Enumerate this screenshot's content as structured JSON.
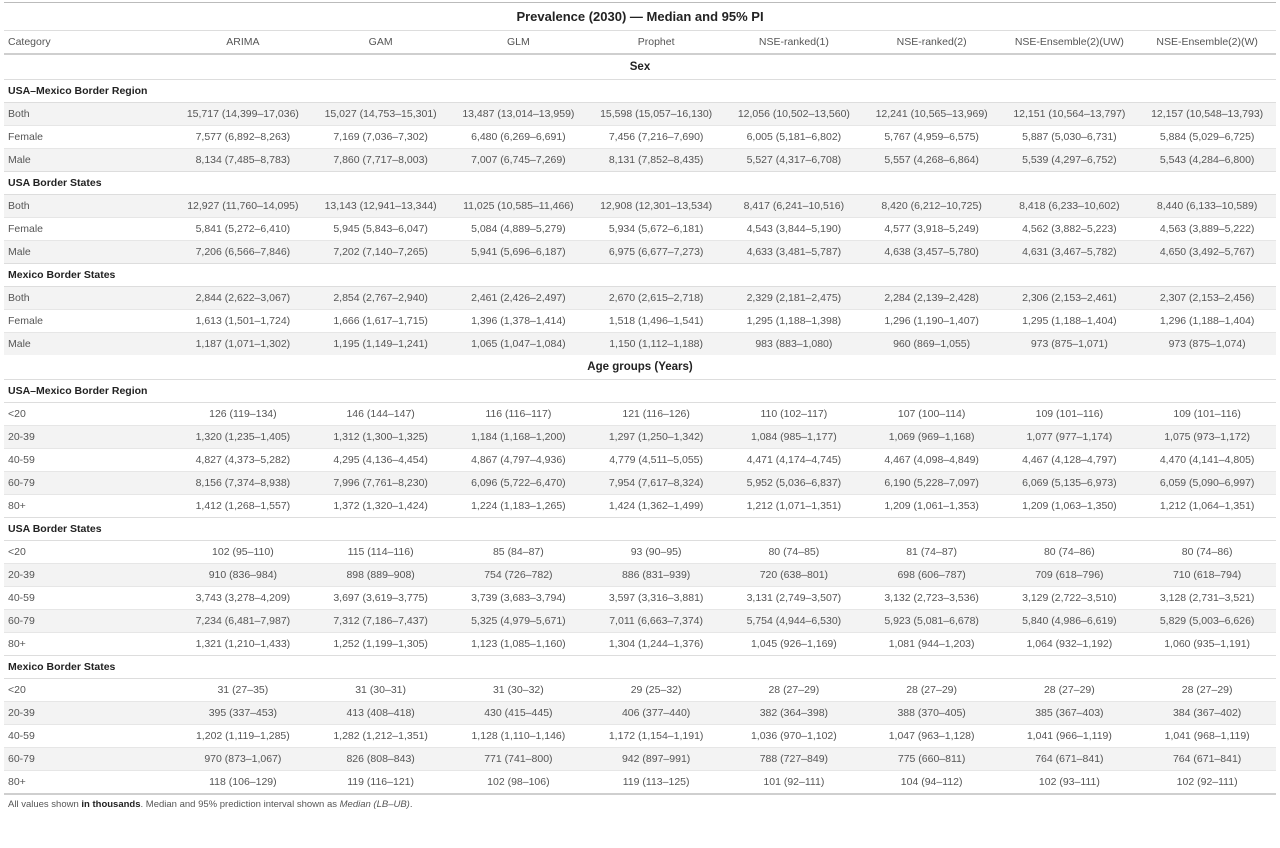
{
  "title": "Prevalence (2030) — Median and 95% PI",
  "columns": [
    "Category",
    "ARIMA",
    "GAM",
    "GLM",
    "Prophet",
    "NSE-ranked(1)",
    "NSE-ranked(2)",
    "NSE-Ensemble(2)(UW)",
    "NSE-Ensemble(2)(W)"
  ],
  "sections": [
    {
      "label": "Sex",
      "groups": [
        {
          "name": "USA–Mexico Border Region",
          "rows": [
            [
              "Both",
              "15,717 (14,399–17,036)",
              "15,027 (14,753–15,301)",
              "13,487 (13,014–13,959)",
              "15,598 (15,057–16,130)",
              "12,056 (10,502–13,560)",
              "12,241 (10,565–13,969)",
              "12,151 (10,564–13,797)",
              "12,157 (10,548–13,793)"
            ],
            [
              "Female",
              "7,577 (6,892–8,263)",
              "7,169 (7,036–7,302)",
              "6,480 (6,269–6,691)",
              "7,456 (7,216–7,690)",
              "6,005 (5,181–6,802)",
              "5,767 (4,959–6,575)",
              "5,887 (5,030–6,731)",
              "5,884 (5,029–6,725)"
            ],
            [
              "Male",
              "8,134 (7,485–8,783)",
              "7,860 (7,717–8,003)",
              "7,007 (6,745–7,269)",
              "8,131 (7,852–8,435)",
              "5,527 (4,317–6,708)",
              "5,557 (4,268–6,864)",
              "5,539 (4,297–6,752)",
              "5,543 (4,284–6,800)"
            ]
          ]
        },
        {
          "name": "USA Border States",
          "rows": [
            [
              "Both",
              "12,927 (11,760–14,095)",
              "13,143 (12,941–13,344)",
              "11,025 (10,585–11,466)",
              "12,908 (12,301–13,534)",
              "8,417 (6,241–10,516)",
              "8,420 (6,212–10,725)",
              "8,418 (6,233–10,602)",
              "8,440 (6,133–10,589)"
            ],
            [
              "Female",
              "5,841 (5,272–6,410)",
              "5,945 (5,843–6,047)",
              "5,084 (4,889–5,279)",
              "5,934 (5,672–6,181)",
              "4,543 (3,844–5,190)",
              "4,577 (3,918–5,249)",
              "4,562 (3,882–5,223)",
              "4,563 (3,889–5,222)"
            ],
            [
              "Male",
              "7,206 (6,566–7,846)",
              "7,202 (7,140–7,265)",
              "5,941 (5,696–6,187)",
              "6,975 (6,677–7,273)",
              "4,633 (3,481–5,787)",
              "4,638 (3,457–5,780)",
              "4,631 (3,467–5,782)",
              "4,650 (3,492–5,767)"
            ]
          ]
        },
        {
          "name": "Mexico Border States",
          "rows": [
            [
              "Both",
              "2,844 (2,622–3,067)",
              "2,854 (2,767–2,940)",
              "2,461 (2,426–2,497)",
              "2,670 (2,615–2,718)",
              "2,329 (2,181–2,475)",
              "2,284 (2,139–2,428)",
              "2,306 (2,153–2,461)",
              "2,307 (2,153–2,456)"
            ],
            [
              "Female",
              "1,613 (1,501–1,724)",
              "1,666 (1,617–1,715)",
              "1,396 (1,378–1,414)",
              "1,518 (1,496–1,541)",
              "1,295 (1,188–1,398)",
              "1,296 (1,190–1,407)",
              "1,295 (1,188–1,404)",
              "1,296 (1,188–1,404)"
            ],
            [
              "Male",
              "1,187 (1,071–1,302)",
              "1,195 (1,149–1,241)",
              "1,065 (1,047–1,084)",
              "1,150 (1,112–1,188)",
              "983 (883–1,080)",
              "960 (869–1,055)",
              "973 (875–1,071)",
              "973 (875–1,074)"
            ]
          ]
        }
      ]
    },
    {
      "label": "Age groups (Years)",
      "groups": [
        {
          "name": "USA–Mexico Border Region",
          "rows": [
            [
              "<20",
              "126 (119–134)",
              "146 (144–147)",
              "116 (116–117)",
              "121 (116–126)",
              "110 (102–117)",
              "107 (100–114)",
              "109 (101–116)",
              "109 (101–116)"
            ],
            [
              "20-39",
              "1,320 (1,235–1,405)",
              "1,312 (1,300–1,325)",
              "1,184 (1,168–1,200)",
              "1,297 (1,250–1,342)",
              "1,084 (985–1,177)",
              "1,069 (969–1,168)",
              "1,077 (977–1,174)",
              "1,075 (973–1,172)"
            ],
            [
              "40-59",
              "4,827 (4,373–5,282)",
              "4,295 (4,136–4,454)",
              "4,867 (4,797–4,936)",
              "4,779 (4,511–5,055)",
              "4,471 (4,174–4,745)",
              "4,467 (4,098–4,849)",
              "4,467 (4,128–4,797)",
              "4,470 (4,141–4,805)"
            ],
            [
              "60-79",
              "8,156 (7,374–8,938)",
              "7,996 (7,761–8,230)",
              "6,096 (5,722–6,470)",
              "7,954 (7,617–8,324)",
              "5,952 (5,036–6,837)",
              "6,190 (5,228–7,097)",
              "6,069 (5,135–6,973)",
              "6,059 (5,090–6,997)"
            ],
            [
              "80+",
              "1,412 (1,268–1,557)",
              "1,372 (1,320–1,424)",
              "1,224 (1,183–1,265)",
              "1,424 (1,362–1,499)",
              "1,212 (1,071–1,351)",
              "1,209 (1,061–1,353)",
              "1,209 (1,063–1,350)",
              "1,212 (1,064–1,351)"
            ]
          ]
        },
        {
          "name": "USA Border States",
          "rows": [
            [
              "<20",
              "102 (95–110)",
              "115 (114–116)",
              "85 (84–87)",
              "93 (90–95)",
              "80 (74–85)",
              "81 (74–87)",
              "80 (74–86)",
              "80 (74–86)"
            ],
            [
              "20-39",
              "910 (836–984)",
              "898 (889–908)",
              "754 (726–782)",
              "886 (831–939)",
              "720 (638–801)",
              "698 (606–787)",
              "709 (618–796)",
              "710 (618–794)"
            ],
            [
              "40-59",
              "3,743 (3,278–4,209)",
              "3,697 (3,619–3,775)",
              "3,739 (3,683–3,794)",
              "3,597 (3,316–3,881)",
              "3,131 (2,749–3,507)",
              "3,132 (2,723–3,536)",
              "3,129 (2,722–3,510)",
              "3,128 (2,731–3,521)"
            ],
            [
              "60-79",
              "7,234 (6,481–7,987)",
              "7,312 (7,186–7,437)",
              "5,325 (4,979–5,671)",
              "7,011 (6,663–7,374)",
              "5,754 (4,944–6,530)",
              "5,923 (5,081–6,678)",
              "5,840 (4,986–6,619)",
              "5,829 (5,003–6,626)"
            ],
            [
              "80+",
              "1,321 (1,210–1,433)",
              "1,252 (1,199–1,305)",
              "1,123 (1,085–1,160)",
              "1,304 (1,244–1,376)",
              "1,045 (926–1,169)",
              "1,081 (944–1,203)",
              "1,064 (932–1,192)",
              "1,060 (935–1,191)"
            ]
          ]
        },
        {
          "name": "Mexico Border States",
          "rows": [
            [
              "<20",
              "31 (27–35)",
              "31 (30–31)",
              "31 (30–32)",
              "29 (25–32)",
              "28 (27–29)",
              "28 (27–29)",
              "28 (27–29)",
              "28 (27–29)"
            ],
            [
              "20-39",
              "395 (337–453)",
              "413 (408–418)",
              "430 (415–445)",
              "406 (377–440)",
              "382 (364–398)",
              "388 (370–405)",
              "385 (367–403)",
              "384 (367–402)"
            ],
            [
              "40-59",
              "1,202 (1,119–1,285)",
              "1,282 (1,212–1,351)",
              "1,128 (1,110–1,146)",
              "1,172 (1,154–1,191)",
              "1,036 (970–1,102)",
              "1,047 (963–1,128)",
              "1,041 (966–1,119)",
              "1,041 (968–1,119)"
            ],
            [
              "60-79",
              "970 (873–1,067)",
              "826 (808–843)",
              "771 (741–800)",
              "942 (897–991)",
              "788 (727–849)",
              "775 (660–811)",
              "764 (671–841)",
              "764 (671–841)"
            ],
            [
              "80+",
              "118 (106–129)",
              "119 (116–121)",
              "102 (98–106)",
              "119 (113–125)",
              "101 (92–111)",
              "104 (94–112)",
              "102 (93–111)",
              "102 (92–111)"
            ]
          ]
        }
      ]
    }
  ],
  "footnote": {
    "part1": "All values shown ",
    "bold": "in thousands",
    "part2": ". Median and 95% prediction interval shown as ",
    "italic": "Median (LB–UB)",
    "part3": "."
  }
}
